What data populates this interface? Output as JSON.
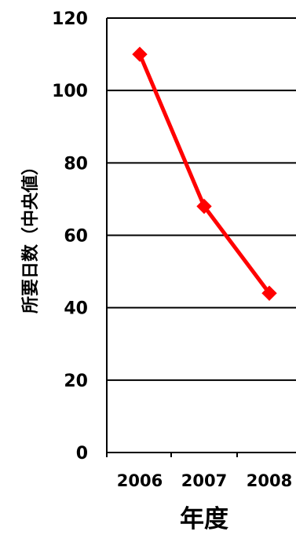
{
  "chart_data": {
    "type": "line",
    "title": "",
    "xlabel": "年度",
    "ylabel": "所要日数（中央値）",
    "categories": [
      "2006",
      "2007",
      "2008"
    ],
    "series": [
      {
        "values": [
          110,
          68,
          44
        ],
        "color": "#ff0000",
        "marker": "diamond"
      }
    ],
    "ylim": [
      0,
      120
    ],
    "yticks": [
      "0",
      "20",
      "40",
      "60",
      "80",
      "100",
      "120"
    ],
    "grid": true,
    "legend": "none"
  }
}
